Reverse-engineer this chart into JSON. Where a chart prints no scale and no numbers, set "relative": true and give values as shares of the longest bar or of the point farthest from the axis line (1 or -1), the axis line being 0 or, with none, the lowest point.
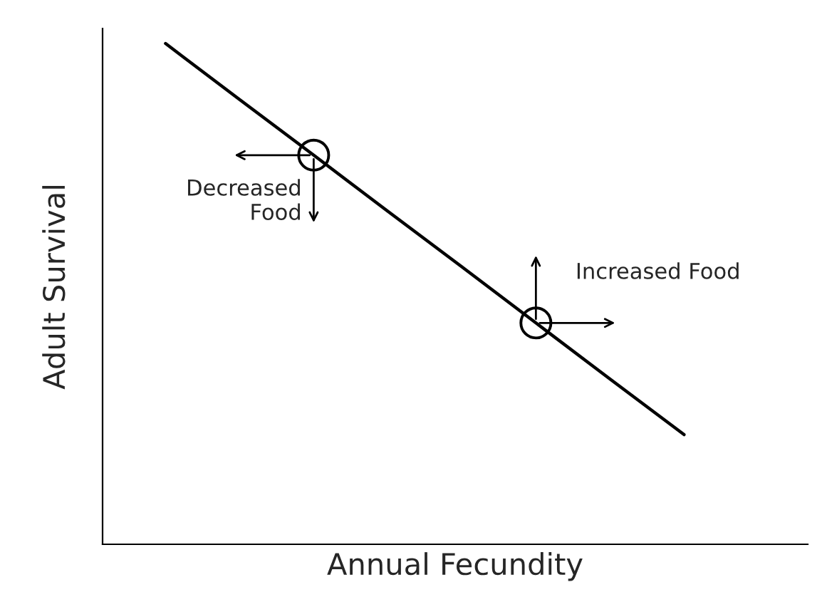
{
  "chart_data": {
    "type": "line",
    "relative": true,
    "xlabel": "Annual Fecundity",
    "ylabel": "Adult Survival",
    "categories": [
      null,
      null,
      null,
      null,
      null,
      null,
      null,
      null
    ],
    "series": [
      {
        "color": "#000000",
        "values": [
          1,
          0.888,
          0.777,
          0.665,
          0.554,
          0.442,
          0.33,
          0.219
        ]
      }
    ],
    "annotations": [
      "Decreased\nFood",
      "Increased Food"
    ]
  }
}
